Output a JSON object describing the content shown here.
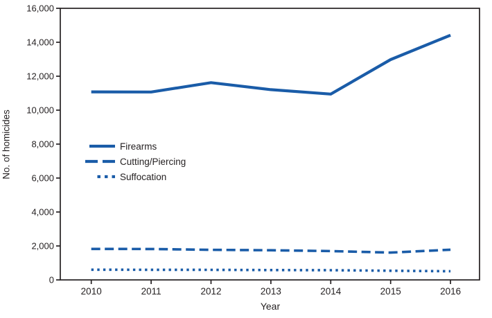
{
  "figure": {
    "background_color": "#ffffff"
  },
  "chart_data": {
    "type": "line",
    "title": "",
    "xlabel": "Year",
    "ylabel": "No. of homicides",
    "x": [
      2010,
      2011,
      2012,
      2013,
      2014,
      2015,
      2016
    ],
    "x_tick_labels": [
      "2010",
      "2011",
      "2012",
      "2013",
      "2014",
      "2015",
      "2016"
    ],
    "y_ticks": [
      {
        "value": 0,
        "label": "0"
      },
      {
        "value": 2000,
        "label": "2,000"
      },
      {
        "value": 4000,
        "label": "4,000"
      },
      {
        "value": 6000,
        "label": "6,000"
      },
      {
        "value": 8000,
        "label": "8,000"
      },
      {
        "value": 10000,
        "label": "10,000"
      },
      {
        "value": 12000,
        "label": "12,000"
      },
      {
        "value": 14000,
        "label": "14,000"
      },
      {
        "value": 16000,
        "label": "16,000"
      }
    ],
    "ylim": [
      0,
      16000
    ],
    "grid": false,
    "legend_position": "inside-middle-left",
    "series": [
      {
        "name": "Firearms",
        "style": "solid",
        "values": [
          11078,
          11068,
          11622,
          11208,
          10945,
          12979,
          14415
        ]
      },
      {
        "name": "Cutting/Piercing",
        "style": "dashed",
        "values": [
          1825,
          1820,
          1770,
          1745,
          1700,
          1610,
          1780
        ]
      },
      {
        "name": "Suffocation",
        "style": "dotted",
        "values": [
          600,
          595,
          590,
          580,
          570,
          540,
          510
        ]
      }
    ],
    "colors": {
      "line": "#1A5CA8",
      "axis": "#231F20",
      "text": "#231F20"
    }
  }
}
